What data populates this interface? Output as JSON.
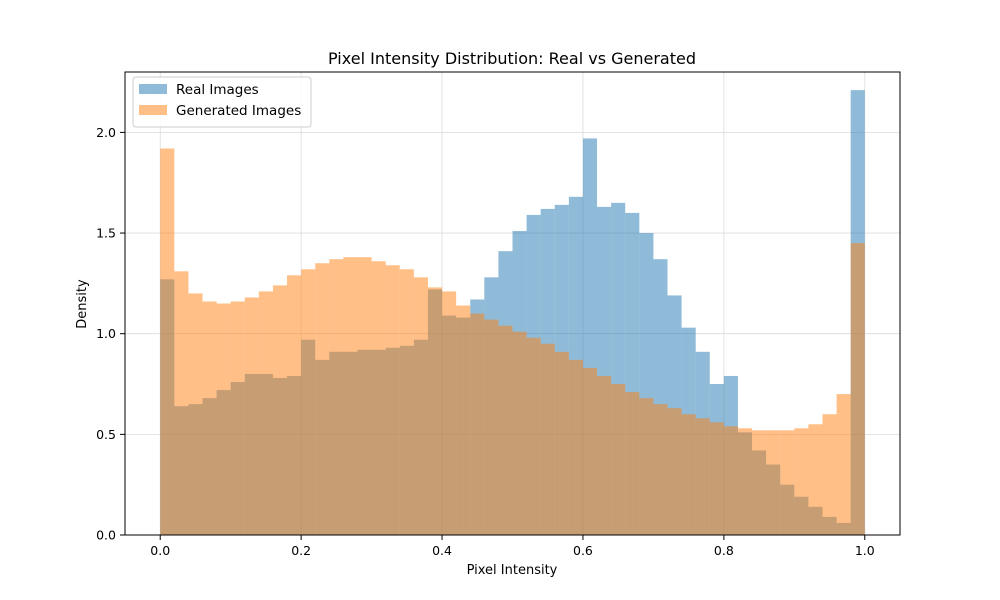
{
  "chart_data": {
    "type": "bar",
    "title": "Pixel Intensity Distribution: Real vs Generated",
    "xlabel": "Pixel Intensity",
    "ylabel": "Density",
    "xlim": [
      -0.05,
      1.05
    ],
    "ylim": [
      0,
      2.3
    ],
    "xticks": [
      0.0,
      0.2,
      0.4,
      0.6,
      0.8,
      1.0
    ],
    "xtick_labels": [
      "0.0",
      "0.2",
      "0.4",
      "0.6",
      "0.8",
      "1.0"
    ],
    "yticks": [
      0.0,
      0.5,
      1.0,
      1.5,
      2.0
    ],
    "ytick_labels": [
      "0.0",
      "0.5",
      "1.0",
      "1.5",
      "2.0"
    ],
    "grid": true,
    "legend_position": "top-left",
    "bin_start": 0.0,
    "bin_width": 0.02,
    "series": [
      {
        "name": "Real Images",
        "color": "#1f77b4",
        "alpha": 0.5,
        "values": [
          1.27,
          0.64,
          0.65,
          0.68,
          0.72,
          0.76,
          0.8,
          0.8,
          0.78,
          0.79,
          0.97,
          0.87,
          0.91,
          0.91,
          0.92,
          0.92,
          0.93,
          0.94,
          0.97,
          1.22,
          1.09,
          1.08,
          1.17,
          1.28,
          1.41,
          1.51,
          1.59,
          1.62,
          1.64,
          1.68,
          1.97,
          1.63,
          1.65,
          1.6,
          1.5,
          1.37,
          1.19,
          1.03,
          0.91,
          0.75,
          0.79,
          0.51,
          0.42,
          0.35,
          0.25,
          0.19,
          0.14,
          0.09,
          0.06,
          2.21
        ]
      },
      {
        "name": "Generated Images",
        "color": "#ff7f0e",
        "alpha": 0.5,
        "values": [
          1.92,
          1.31,
          1.2,
          1.16,
          1.15,
          1.16,
          1.18,
          1.21,
          1.24,
          1.29,
          1.32,
          1.35,
          1.37,
          1.38,
          1.38,
          1.36,
          1.34,
          1.32,
          1.28,
          1.23,
          1.21,
          1.14,
          1.1,
          1.07,
          1.04,
          1.01,
          0.98,
          0.95,
          0.91,
          0.87,
          0.83,
          0.79,
          0.75,
          0.71,
          0.68,
          0.65,
          0.63,
          0.6,
          0.58,
          0.56,
          0.54,
          0.53,
          0.52,
          0.52,
          0.52,
          0.53,
          0.55,
          0.6,
          0.7,
          1.45
        ]
      }
    ]
  }
}
